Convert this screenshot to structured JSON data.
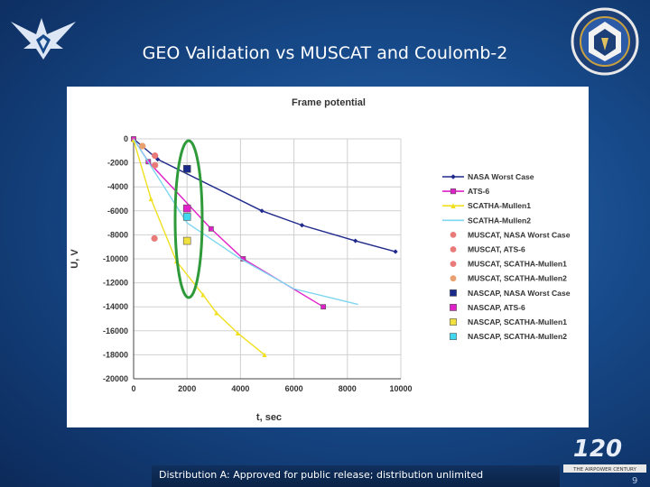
{
  "slide": {
    "title": "GEO Validation vs MUSCAT and Coulomb-2",
    "footer": "Distribution A: Approved for public release; distribution unlimited",
    "page_number": "9",
    "anniversary_logo_text": "120",
    "anniversary_caption": "THE AIRPOWER CENTURY"
  },
  "chart_data": {
    "type": "line",
    "title": "Frame potential",
    "xlabel": "t, sec",
    "ylabel": "U, V",
    "xlim": [
      0,
      10000
    ],
    "ylim": [
      -20000,
      0
    ],
    "x_ticks": [
      0,
      2000,
      4000,
      6000,
      8000,
      10000
    ],
    "y_ticks": [
      0,
      -2000,
      -4000,
      -6000,
      -8000,
      -10000,
      -12000,
      -14000,
      -16000,
      -18000,
      -20000
    ],
    "grid": true,
    "legend_position": "right",
    "highlight": "green ellipse around t = 2000 s",
    "series": [
      {
        "name": "NASA Worst Case",
        "kind": "line",
        "color": "#1f2a8c",
        "marker": "diamond",
        "x": [
          0,
          900,
          4800,
          6300,
          8300,
          9800
        ],
        "y": [
          0,
          -1700,
          -6000,
          -7200,
          -8500,
          -9400
        ]
      },
      {
        "name": "ATS-6",
        "kind": "line",
        "color": "#e020c8",
        "marker": "square",
        "x": [
          0,
          550,
          2900,
          4100,
          7100
        ],
        "y": [
          0,
          -1900,
          -7500,
          -10000,
          -14000
        ]
      },
      {
        "name": "SCATHA-Mullen1",
        "kind": "line",
        "color": "#f0e020",
        "marker": "triangle",
        "x": [
          0,
          650,
          1600,
          2600,
          3100,
          3900,
          4900
        ],
        "y": [
          -100,
          -5000,
          -10200,
          -13000,
          -14500,
          -16200,
          -18000
        ]
      },
      {
        "name": "SCATHA-Mullen2",
        "kind": "line",
        "color": "#7fd6f0",
        "marker": "none",
        "x": [
          0,
          2000,
          4000,
          6000,
          8400
        ],
        "y": [
          0,
          -7000,
          -10000,
          -12500,
          -13800
        ]
      },
      {
        "name": "MUSCAT, NASA Worst Case",
        "kind": "point",
        "color": "#e87a7a",
        "marker": "circle",
        "x": [
          800
        ],
        "y": [
          -1400
        ]
      },
      {
        "name": "MUSCAT, ATS-6",
        "kind": "point",
        "color": "#e87a7a",
        "marker": "circle",
        "x": [
          780
        ],
        "y": [
          -8300
        ]
      },
      {
        "name": "MUSCAT, SCATHA-Mullen1",
        "kind": "point",
        "color": "#e87a7a",
        "marker": "circle",
        "x": [
          800
        ],
        "y": [
          -2200
        ]
      },
      {
        "name": "MUSCAT, SCATHA-Mullen2",
        "kind": "point",
        "color": "#e8a070",
        "marker": "circle",
        "x": [
          330
        ],
        "y": [
          -600
        ]
      },
      {
        "name": "NASCAP, NASA Worst Case",
        "kind": "point",
        "color": "#1a2a8a",
        "marker": "square",
        "x": [
          2000
        ],
        "y": [
          -2500
        ]
      },
      {
        "name": "NASCAP, ATS-6",
        "kind": "point",
        "color": "#e020c8",
        "marker": "square",
        "x": [
          2000
        ],
        "y": [
          -5800
        ]
      },
      {
        "name": "NASCAP, SCATHA-Mullen1",
        "kind": "point",
        "color": "#f0e040",
        "marker": "square",
        "x": [
          2000
        ],
        "y": [
          -8500
        ]
      },
      {
        "name": "NASCAP, SCATHA-Mullen2",
        "kind": "point",
        "color": "#40d8f0",
        "marker": "square",
        "x": [
          2000
        ],
        "y": [
          -6500
        ]
      }
    ]
  }
}
